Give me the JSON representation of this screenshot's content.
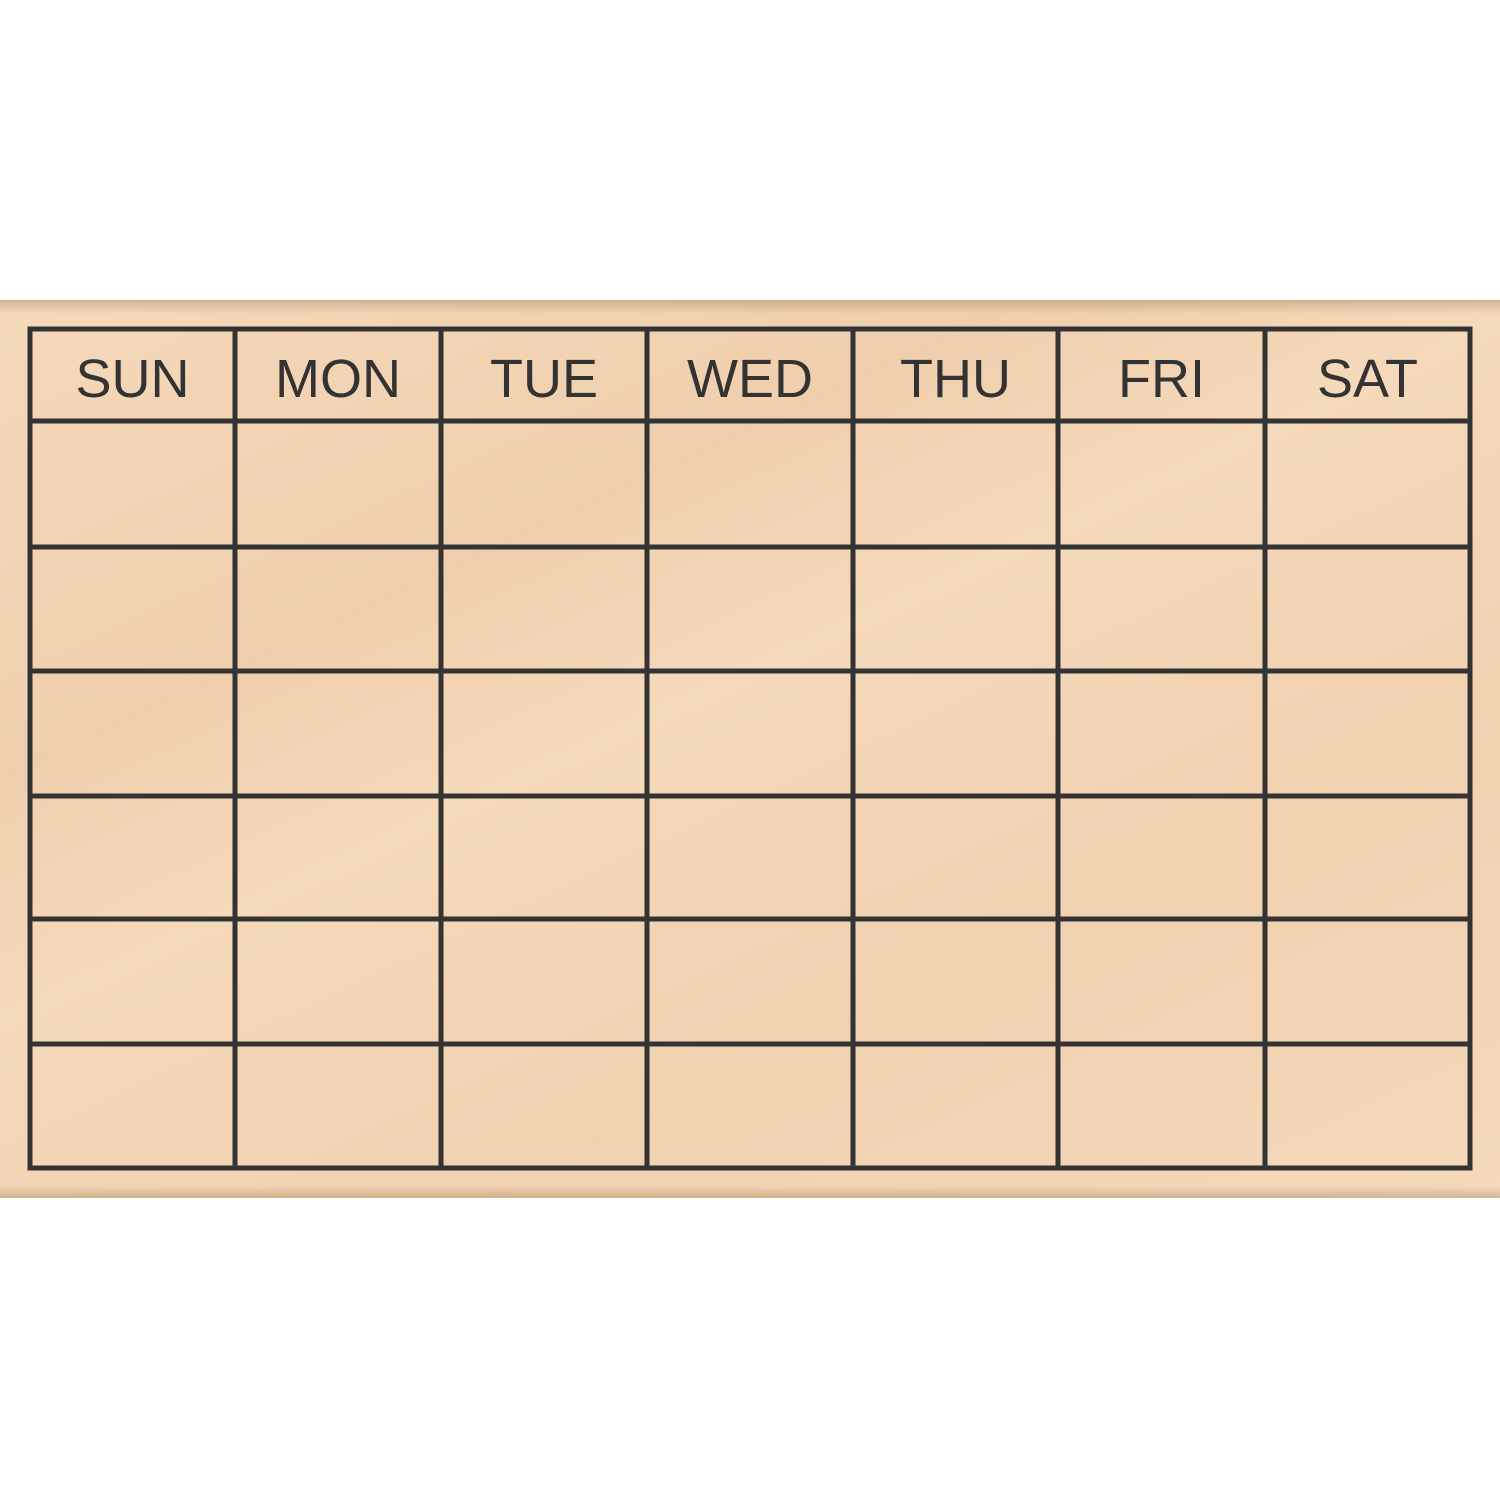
{
  "stamp": {
    "days": [
      "SUN",
      "MON",
      "TUE",
      "WED",
      "THU",
      "FRI",
      "SAT"
    ],
    "week_rows": 6,
    "colors": {
      "wood": "#f5d9bb",
      "ink": "#333333"
    }
  }
}
